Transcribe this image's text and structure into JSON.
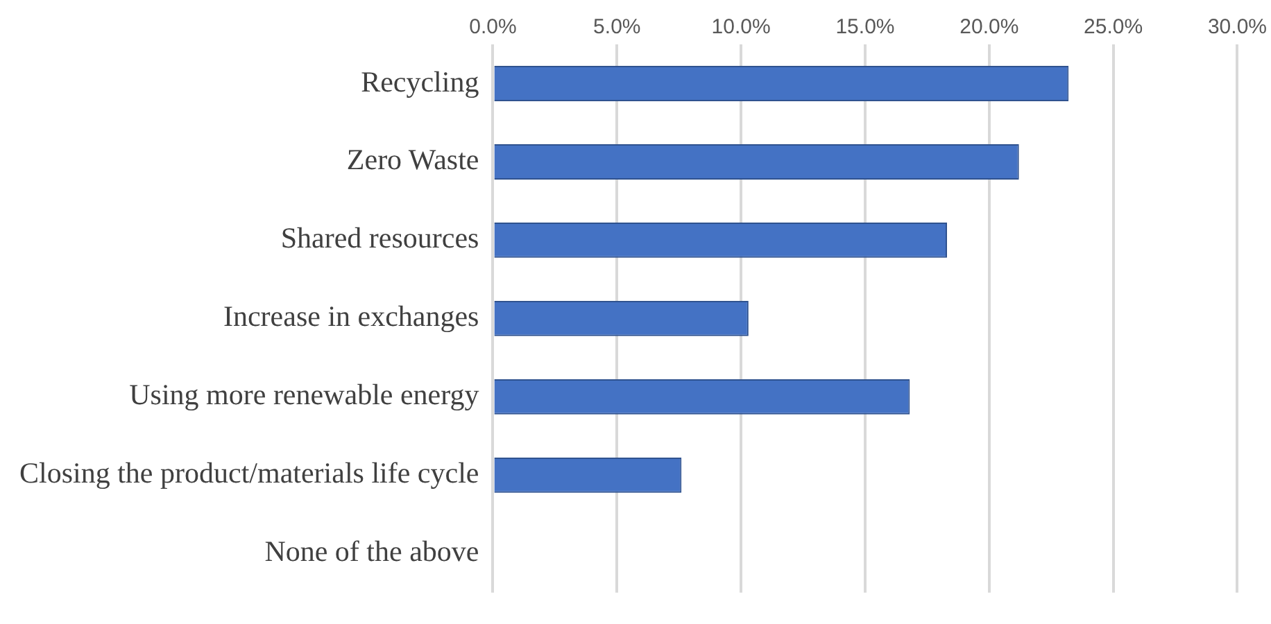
{
  "chart_data": {
    "type": "bar",
    "orientation": "horizontal",
    "categories": [
      "Recycling",
      "Zero Waste",
      "Shared resources",
      "Increase in exchanges",
      "Using more renewable energy",
      "Closing the product/materials life cycle",
      "None of the above"
    ],
    "values": [
      23.2,
      21.2,
      18.3,
      10.3,
      16.8,
      7.6,
      0
    ],
    "color": "#4472c4",
    "xlim": [
      0,
      30
    ],
    "xticks": [
      {
        "value": 0,
        "label": "0.0%"
      },
      {
        "value": 5,
        "label": "5.0%"
      },
      {
        "value": 10,
        "label": "10.0%"
      },
      {
        "value": 15,
        "label": "15.0%"
      },
      {
        "value": 20,
        "label": "20.0%"
      },
      {
        "value": 25,
        "label": "25.0%"
      },
      {
        "value": 30,
        "label": "30.0%"
      }
    ],
    "grid": "x"
  }
}
